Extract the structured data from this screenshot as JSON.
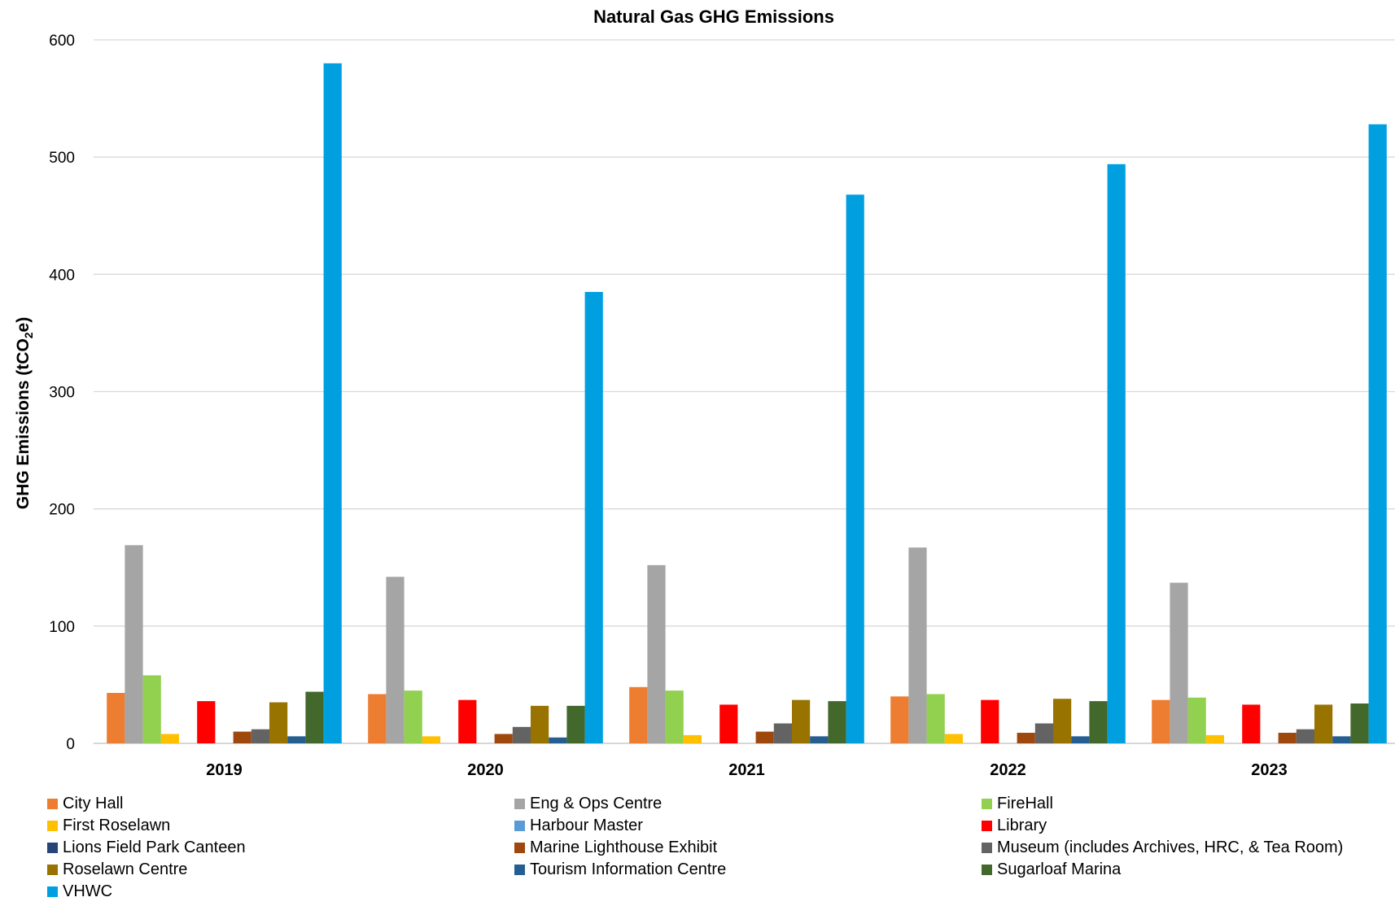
{
  "chart_data": {
    "type": "bar",
    "title": "Natural Gas GHG Emissions",
    "xlabel": "",
    "ylabel": "GHG Emissions (tCO",
    "ylabel_subscript": "2",
    "ylabel_suffix": "e)",
    "ylim": [
      0,
      600
    ],
    "yticks": [
      0,
      100,
      200,
      300,
      400,
      500,
      600
    ],
    "grid": true,
    "legend_position": "bottom",
    "categories": [
      "2019",
      "2020",
      "2021",
      "2022",
      "2023"
    ],
    "series": [
      {
        "name": "City Hall",
        "color": "#ED7D31",
        "values": [
          43,
          42,
          48,
          40,
          37
        ]
      },
      {
        "name": "Eng & Ops Centre",
        "color": "#A5A5A5",
        "values": [
          169,
          142,
          152,
          167,
          137
        ]
      },
      {
        "name": "FireHall",
        "color": "#92D050",
        "values": [
          58,
          45,
          45,
          42,
          39
        ]
      },
      {
        "name": "First Roselawn",
        "color": "#FFC000",
        "values": [
          8,
          6,
          7,
          8,
          7
        ]
      },
      {
        "name": "Harbour Master",
        "color": "#5B9BD5",
        "values": [
          0,
          0,
          0,
          0,
          0
        ]
      },
      {
        "name": "Library",
        "color": "#FF0000",
        "values": [
          36,
          37,
          33,
          37,
          33
        ]
      },
      {
        "name": "Lions Field Park Canteen",
        "color": "#264478",
        "values": [
          0,
          0,
          0,
          0,
          0
        ]
      },
      {
        "name": "Marine Lighthouse Exhibit",
        "color": "#9E480E",
        "values": [
          10,
          8,
          10,
          9,
          9
        ]
      },
      {
        "name": "Museum (includes Archives, HRC, & Tea Room)",
        "color": "#636363",
        "values": [
          12,
          14,
          17,
          17,
          12
        ]
      },
      {
        "name": "Roselawn Centre",
        "color": "#997300",
        "values": [
          35,
          32,
          37,
          38,
          33
        ]
      },
      {
        "name": "Tourism Information Centre",
        "color": "#255E91",
        "values": [
          6,
          5,
          6,
          6,
          6
        ]
      },
      {
        "name": "Sugarloaf Marina",
        "color": "#43682B",
        "values": [
          44,
          32,
          36,
          36,
          34
        ]
      },
      {
        "name": "VHWC",
        "color": "#00A0E0",
        "values": [
          580,
          385,
          468,
          494,
          528
        ]
      }
    ]
  }
}
